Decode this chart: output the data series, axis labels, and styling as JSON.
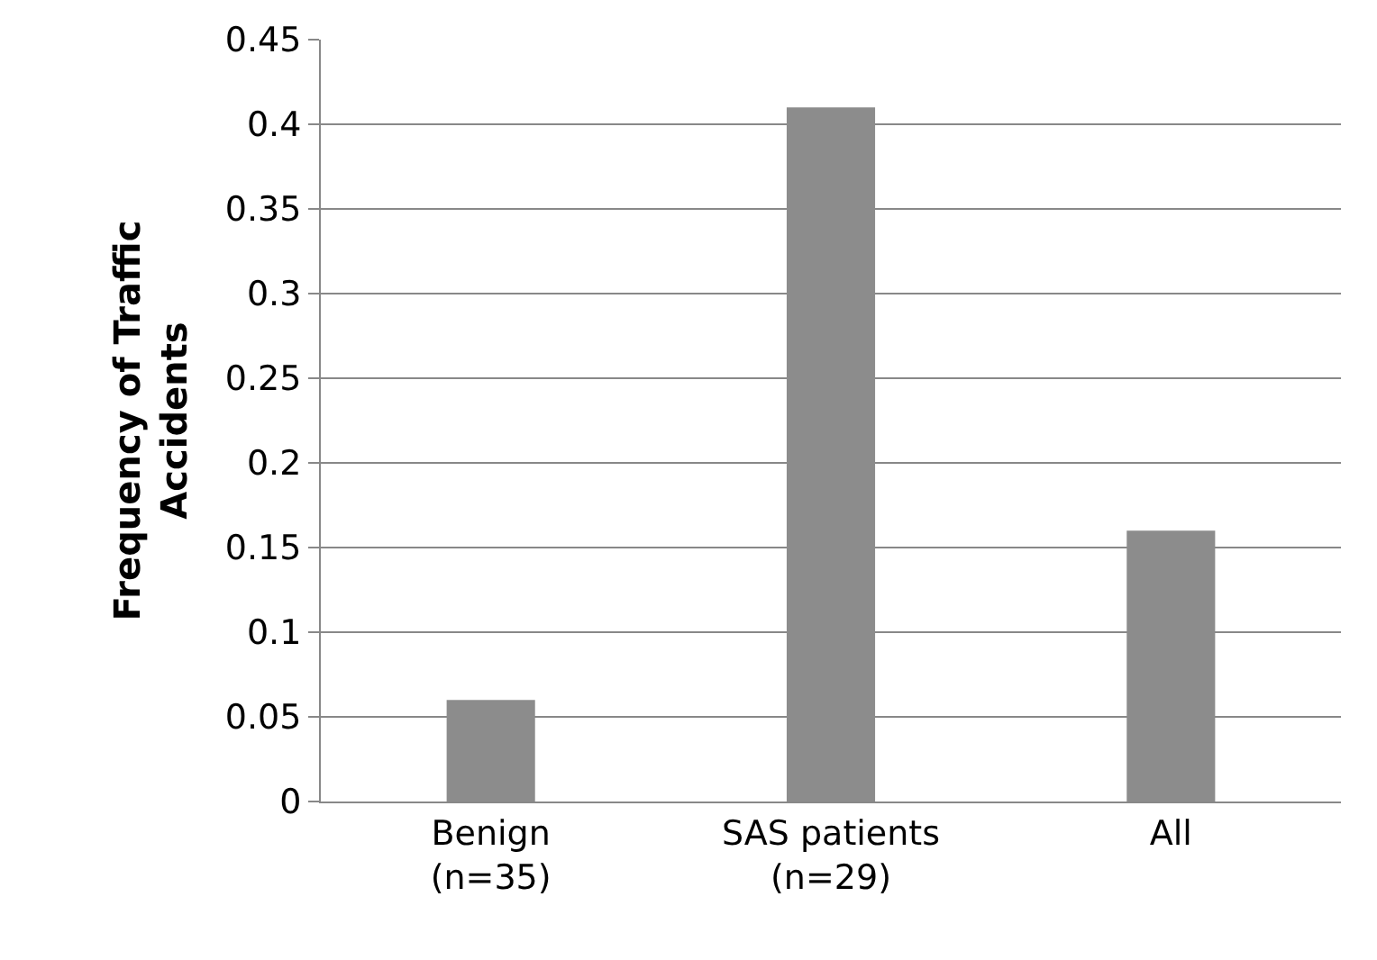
{
  "chart_data": {
    "type": "bar",
    "ylabel": "Frequency of Traffic\nAccidents",
    "categories": [
      "Benign\n(n=35)",
      "SAS patients\n(n=29)",
      "All"
    ],
    "values": [
      0.06,
      0.41,
      0.16
    ],
    "color": "#8c8c8c",
    "ylim": [
      0,
      0.45
    ],
    "yticks": [
      0,
      0.05,
      0.1,
      0.15,
      0.2,
      0.25,
      0.3,
      0.35,
      0.4,
      0.45
    ],
    "grid": "y"
  }
}
